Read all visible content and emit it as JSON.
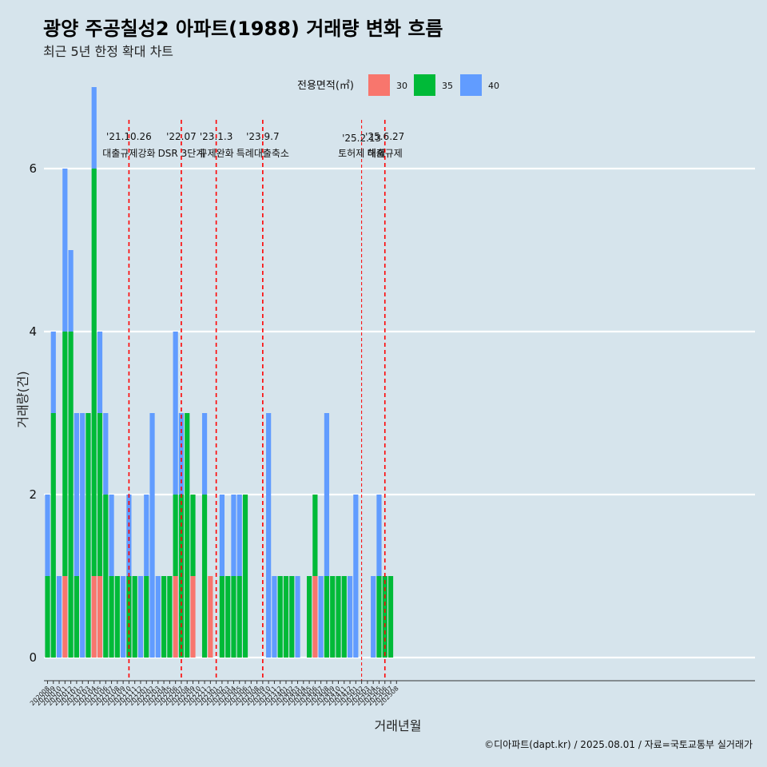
{
  "colors": {
    "background": "#d6e4ec",
    "grid": "#ffffff",
    "event_line": "#ff0000"
  },
  "chart_data": {
    "type": "bar",
    "stacked": true,
    "title": "광양 주공칠성2 아파트(1988) 거래량 변화 흐름",
    "subtitle": "최근 5년 한정 확대 차트",
    "xlabel": "거래년월",
    "ylabel": "거래량(건)",
    "ylim": [
      0,
      6
    ],
    "yticks": [
      0,
      2,
      4,
      6
    ],
    "grid": true,
    "caption": "©디아파트(dapt.kr) / 2025.08.01 / 자료=국토교통부 실거래가",
    "legend": {
      "title": "전용면적(㎡)",
      "position": "top",
      "items": [
        {
          "name": "30",
          "color": "#f8766d"
        },
        {
          "name": "35",
          "color": "#00ba38"
        },
        {
          "name": "40",
          "color": "#619cff"
        }
      ]
    },
    "categories": [
      "202008",
      "202009",
      "202010",
      "202011",
      "202012",
      "202101",
      "202102",
      "202103",
      "202104",
      "202105",
      "202106",
      "202107",
      "202108",
      "202109",
      "202110",
      "202111",
      "202112",
      "202201",
      "202202",
      "202203",
      "202204",
      "202205",
      "202206",
      "202207",
      "202208",
      "202209",
      "202210",
      "202211",
      "202212",
      "202301",
      "202302",
      "202303",
      "202304",
      "202305",
      "202306",
      "202307",
      "202308",
      "202309",
      "202310",
      "202311",
      "202312",
      "202401",
      "202402",
      "202403",
      "202404",
      "202405",
      "202406",
      "202407",
      "202408",
      "202409",
      "202410",
      "202411",
      "202412",
      "202501",
      "202502",
      "202503",
      "202504",
      "202505",
      "202506",
      "202507",
      "202508"
    ],
    "series": [
      {
        "name": "30",
        "color": "#f8766d",
        "values": [
          0,
          0,
          0,
          1,
          0,
          0,
          0,
          0,
          1,
          1,
          0,
          0,
          0,
          0,
          0,
          0,
          0,
          0,
          0,
          0,
          0,
          0,
          1,
          0,
          0,
          1,
          0,
          0,
          1,
          0,
          0,
          0,
          0,
          0,
          0,
          0,
          0,
          0,
          0,
          0,
          0,
          0,
          0,
          0,
          0,
          0,
          1,
          0,
          0,
          0,
          0,
          0,
          0,
          0,
          0,
          0,
          0,
          0,
          0,
          0,
          0
        ]
      },
      {
        "name": "35",
        "color": "#00ba38",
        "values": [
          1,
          3,
          0,
          3,
          4,
          1,
          0,
          3,
          5,
          2,
          2,
          1,
          1,
          0,
          1,
          1,
          0,
          1,
          0,
          0,
          1,
          1,
          1,
          2,
          3,
          1,
          0,
          2,
          0,
          0,
          1,
          1,
          1,
          1,
          2,
          0,
          0,
          0,
          0,
          0,
          1,
          1,
          1,
          0,
          0,
          1,
          1,
          0,
          1,
          1,
          1,
          1,
          0,
          0,
          0,
          0,
          0,
          1,
          1,
          1,
          0
        ]
      },
      {
        "name": "40",
        "color": "#619cff",
        "values": [
          1,
          1,
          1,
          2,
          1,
          2,
          3,
          0,
          1,
          1,
          1,
          1,
          0,
          1,
          1,
          0,
          1,
          1,
          3,
          1,
          0,
          0,
          2,
          1,
          0,
          0,
          0,
          1,
          0,
          0,
          1,
          0,
          1,
          1,
          0,
          0,
          0,
          0,
          3,
          1,
          0,
          0,
          0,
          1,
          0,
          0,
          0,
          1,
          2,
          0,
          0,
          0,
          1,
          2,
          0,
          0,
          1,
          1,
          0,
          0,
          0
        ]
      }
    ],
    "events": [
      {
        "x": "202110",
        "date": "'21.10.26",
        "label": "대출규제강화",
        "style": "dashed"
      },
      {
        "x": "202207",
        "date": "'22.07",
        "label": "DSR 3단계",
        "style": "dashed"
      },
      {
        "x": "202301",
        "date": "'23.1.3",
        "label": "규제완화",
        "style": "dashed"
      },
      {
        "x": "202309",
        "date": "'23.9.7",
        "label": "특례대출축소",
        "style": "dashed"
      },
      {
        "x": "202502",
        "date": "'25.2.13",
        "label": "토허제 해제",
        "style": "thin"
      },
      {
        "x": "202506",
        "date": "'25.6.27",
        "label": "대출규제",
        "style": "dashed"
      }
    ]
  }
}
